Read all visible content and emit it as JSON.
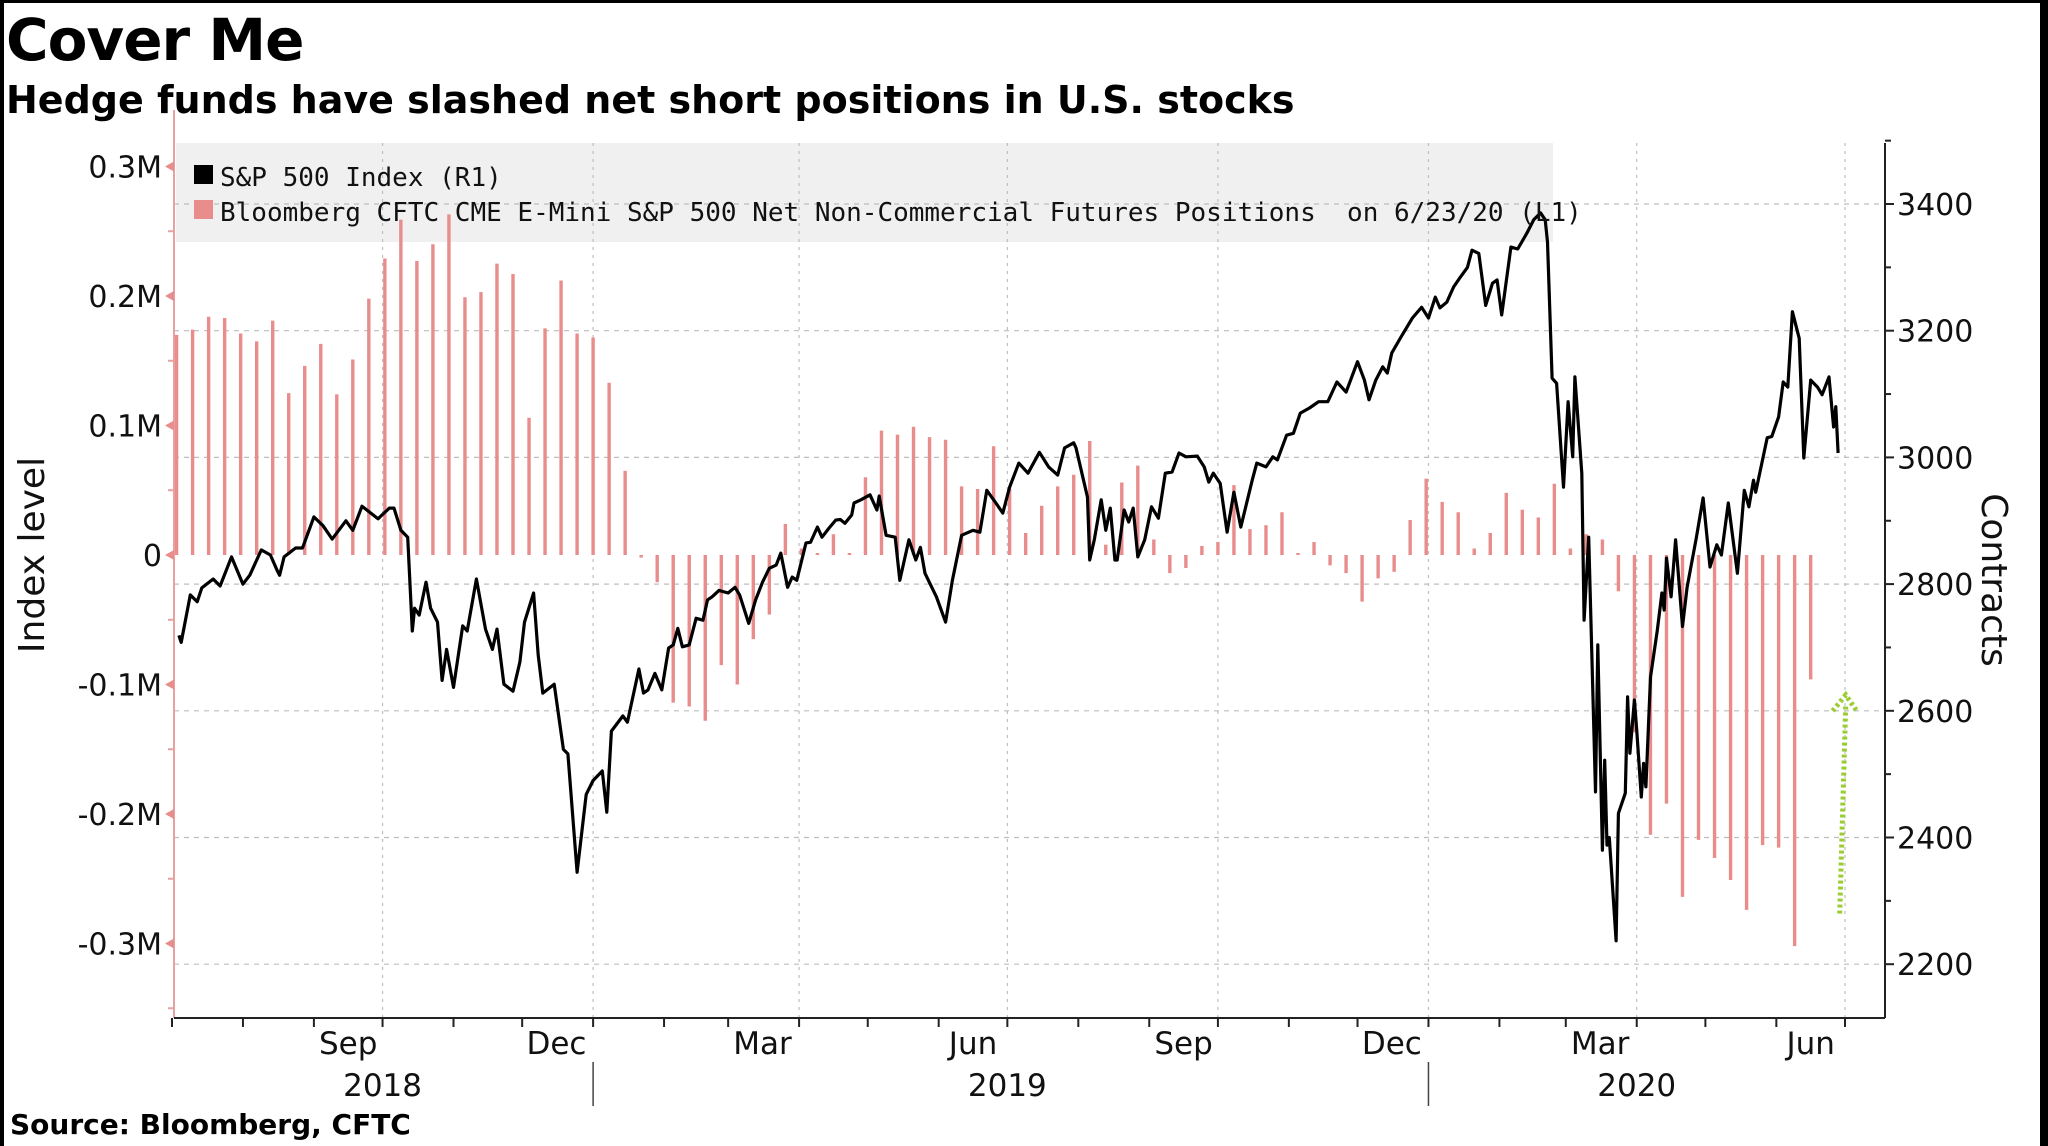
{
  "title": "Cover Me",
  "subtitle": "Hedge funds have slashed net short positions in U.S. stocks",
  "source": "Source: Bloomberg, CFTC",
  "colors": {
    "line": "#000000",
    "bars": "#e88c8c",
    "left_axis": "#e8a0a0",
    "legend_bg": "#f0f0f0",
    "annotation_arrow": "#9acd32",
    "grid": "#bdbdbd"
  },
  "chart_data": {
    "type": "bar+line",
    "title": "Cover Me",
    "subtitle": "Hedge funds have slashed net short positions in U.S. stocks",
    "x_axis": {
      "start_date": "2018-07-01",
      "end_date": "2020-07-10",
      "month_labels": [
        {
          "label": "Sep",
          "day": 77
        },
        {
          "label": "Dec",
          "day": 168
        },
        {
          "label": "Mar",
          "day": 258
        },
        {
          "label": "Jun",
          "day": 350
        },
        {
          "label": "Sep",
          "day": 442
        },
        {
          "label": "Dec",
          "day": 533
        },
        {
          "label": "Mar",
          "day": 624
        },
        {
          "label": "Jun",
          "day": 716
        }
      ],
      "quarter_gridlines_day": [
        92,
        184,
        274,
        365,
        457,
        549,
        640,
        731
      ],
      "year_labels": [
        {
          "label": "2018",
          "day": 92
        },
        {
          "label": "2019",
          "day": 365
        },
        {
          "label": "2020",
          "day": 640
        }
      ],
      "year_separators_day": [
        184,
        549
      ]
    },
    "left_axis": {
      "label": "Index level",
      "ylim": [
        -0.365,
        0.33
      ],
      "ticks": [
        0.3,
        0.2,
        0.1,
        0,
        -0.1,
        -0.2,
        -0.3
      ],
      "tick_labels": [
        "0.3M",
        "0.2M",
        "0.1M",
        "0",
        "-0.1M",
        "-0.2M",
        "-0.3M"
      ],
      "unit": "millions of contracts"
    },
    "right_axis": {
      "label": "Contracts",
      "ylim": [
        2118,
        3505
      ],
      "ticks": [
        3400,
        3200,
        3000,
        2800,
        2600,
        2400,
        2200
      ],
      "tick_labels": [
        "3400",
        "3200",
        "3000",
        "2800",
        "2600",
        "2400",
        "2200"
      ]
    },
    "legend": {
      "placement": "top-left",
      "items": [
        {
          "label": "S&P 500 Index (R1)",
          "swatch": "line"
        },
        {
          "label": "Bloomberg CFTC CME E-Mini S&P 500 Net Non-Commercial Futures Positions  on 6/23/20 (L1)",
          "swatch": "bars"
        }
      ]
    },
    "bar_series": {
      "name": "Bloomberg CFTC CME E-Mini S&P 500 Net Non-Commercial Futures Positions (L1)",
      "axis": "left",
      "first_day": 2,
      "step_days": 7,
      "values_millions": [
        0.17,
        0.174,
        0.184,
        0.183,
        0.171,
        0.165,
        0.181,
        0.125,
        0.146,
        0.163,
        0.124,
        0.151,
        0.198,
        0.229,
        0.259,
        0.227,
        0.24,
        0.263,
        0.199,
        0.203,
        0.225,
        0.217,
        0.106,
        0.175,
        0.212,
        0.171,
        0.168,
        0.133,
        0.065,
        -0.002,
        -0.021,
        -0.114,
        -0.117,
        -0.128,
        -0.085,
        -0.1,
        -0.065,
        -0.046,
        0.024,
        0.005,
        0.001,
        0.016,
        0.001,
        0.06,
        0.096,
        0.093,
        0.099,
        0.091,
        0.089,
        0.053,
        0.051,
        0.084,
        0.051,
        0.017,
        0.038,
        0.053,
        0.062,
        0.088,
        0.008,
        0.056,
        0.069,
        0.012,
        -0.014,
        -0.01,
        0.007,
        0.01,
        0.054,
        0.02,
        0.023,
        0.033,
        0.001,
        0.01,
        -0.008,
        -0.014,
        -0.036,
        -0.018,
        -0.013,
        0.027,
        0.059,
        0.041,
        0.033,
        0.005,
        0.017,
        0.048,
        0.035,
        0.029,
        0.055,
        0.005,
        0.016,
        0.012,
        -0.028,
        -0.137,
        -0.216,
        -0.192,
        -0.264,
        -0.22,
        -0.234,
        -0.251,
        -0.274,
        -0.224,
        -0.226,
        -0.302,
        -0.096
      ]
    },
    "line_series": {
      "name": "S&P 500 Index (R1)",
      "axis": "right",
      "points_day_value": [
        [
          3,
          2719
        ],
        [
          4,
          2708
        ],
        [
          8,
          2783
        ],
        [
          11,
          2772
        ],
        [
          13,
          2794
        ],
        [
          18,
          2808
        ],
        [
          21,
          2797
        ],
        [
          26,
          2843
        ],
        [
          31,
          2800
        ],
        [
          34,
          2814
        ],
        [
          39,
          2854
        ],
        [
          43,
          2846
        ],
        [
          46,
          2821
        ],
        [
          47,
          2814
        ],
        [
          49,
          2843
        ],
        [
          54,
          2857
        ],
        [
          57,
          2857
        ],
        [
          62,
          2906
        ],
        [
          66,
          2892
        ],
        [
          70,
          2871
        ],
        [
          76,
          2900
        ],
        [
          79,
          2885
        ],
        [
          83,
          2923
        ],
        [
          90,
          2903
        ],
        [
          95,
          2920
        ],
        [
          97,
          2920
        ],
        [
          100,
          2885
        ],
        [
          103,
          2874
        ],
        [
          105,
          2726
        ],
        [
          106,
          2762
        ],
        [
          108,
          2751
        ],
        [
          111,
          2803
        ],
        [
          113,
          2762
        ],
        [
          116,
          2740
        ],
        [
          118,
          2648
        ],
        [
          120,
          2697
        ],
        [
          123,
          2637
        ],
        [
          127,
          2734
        ],
        [
          129,
          2726
        ],
        [
          133,
          2808
        ],
        [
          137,
          2729
        ],
        [
          140,
          2697
        ],
        [
          142,
          2729
        ],
        [
          145,
          2642
        ],
        [
          149,
          2631
        ],
        [
          152,
          2677
        ],
        [
          154,
          2740
        ],
        [
          158,
          2786
        ],
        [
          160,
          2688
        ],
        [
          162,
          2628
        ],
        [
          167,
          2642
        ],
        [
          171,
          2539
        ],
        [
          173,
          2532
        ],
        [
          177,
          2345
        ],
        [
          181,
          2468
        ],
        [
          184,
          2490
        ],
        [
          188,
          2505
        ],
        [
          190,
          2440
        ],
        [
          192,
          2568
        ],
        [
          197,
          2592
        ],
        [
          199,
          2582
        ],
        [
          204,
          2666
        ],
        [
          206,
          2628
        ],
        [
          208,
          2633
        ],
        [
          211,
          2659
        ],
        [
          214,
          2633
        ],
        [
          217,
          2699
        ],
        [
          219,
          2704
        ],
        [
          221,
          2730
        ],
        [
          223,
          2701
        ],
        [
          226,
          2704
        ],
        [
          229,
          2746
        ],
        [
          232,
          2743
        ],
        [
          234,
          2775
        ],
        [
          236,
          2780
        ],
        [
          239,
          2790
        ],
        [
          243,
          2786
        ],
        [
          246,
          2795
        ],
        [
          248,
          2783
        ],
        [
          252,
          2738
        ],
        [
          255,
          2775
        ],
        [
          258,
          2803
        ],
        [
          261,
          2825
        ],
        [
          264,
          2830
        ],
        [
          266,
          2849
        ],
        [
          269,
          2795
        ],
        [
          271,
          2811
        ],
        [
          273,
          2806
        ],
        [
          277,
          2865
        ],
        [
          279,
          2866
        ],
        [
          282,
          2890
        ],
        [
          284,
          2874
        ],
        [
          287,
          2888
        ],
        [
          290,
          2901
        ],
        [
          292,
          2902
        ],
        [
          294,
          2896
        ],
        [
          297,
          2909
        ],
        [
          298,
          2928
        ],
        [
          301,
          2933
        ],
        [
          305,
          2941
        ],
        [
          308,
          2917
        ],
        [
          309,
          2939
        ],
        [
          312,
          2877
        ],
        [
          316,
          2874
        ],
        [
          318,
          2806
        ],
        [
          322,
          2870
        ],
        [
          325,
          2838
        ],
        [
          327,
          2858
        ],
        [
          329,
          2817
        ],
        [
          334,
          2780
        ],
        [
          338,
          2740
        ],
        [
          341,
          2806
        ],
        [
          345,
          2877
        ],
        [
          350,
          2885
        ],
        [
          353,
          2882
        ],
        [
          356,
          2948
        ],
        [
          360,
          2928
        ],
        [
          363,
          2912
        ],
        [
          366,
          2953
        ],
        [
          370,
          2991
        ],
        [
          374,
          2975
        ],
        [
          379,
          3008
        ],
        [
          383,
          2985
        ],
        [
          387,
          2972
        ],
        [
          390,
          3015
        ],
        [
          394,
          3023
        ],
        [
          395,
          3015
        ],
        [
          400,
          2937
        ],
        [
          401,
          2838
        ],
        [
          403,
          2870
        ],
        [
          406,
          2933
        ],
        [
          408,
          2885
        ],
        [
          410,
          2920
        ],
        [
          412,
          2838
        ],
        [
          413,
          2838
        ],
        [
          416,
          2917
        ],
        [
          418,
          2898
        ],
        [
          420,
          2920
        ],
        [
          422,
          2843
        ],
        [
          425,
          2870
        ],
        [
          428,
          2922
        ],
        [
          431,
          2904
        ],
        [
          434,
          2975
        ],
        [
          437,
          2977
        ],
        [
          440,
          3007
        ],
        [
          443,
          3001
        ],
        [
          448,
          3002
        ],
        [
          451,
          2985
        ],
        [
          453,
          2961
        ],
        [
          455,
          2975
        ],
        [
          458,
          2959
        ],
        [
          461,
          2882
        ],
        [
          464,
          2945
        ],
        [
          467,
          2890
        ],
        [
          472,
          2964
        ],
        [
          474,
          2991
        ],
        [
          478,
          2985
        ],
        [
          481,
          3001
        ],
        [
          483,
          2996
        ],
        [
          487,
          3035
        ],
        [
          490,
          3038
        ],
        [
          493,
          3070
        ],
        [
          497,
          3078
        ],
        [
          501,
          3088
        ],
        [
          505,
          3088
        ],
        [
          509,
          3119
        ],
        [
          513,
          3103
        ],
        [
          518,
          3151
        ],
        [
          521,
          3122
        ],
        [
          523,
          3091
        ],
        [
          526,
          3122
        ],
        [
          529,
          3143
        ],
        [
          531,
          3133
        ],
        [
          533,
          3165
        ],
        [
          537,
          3190
        ],
        [
          542,
          3220
        ],
        [
          546,
          3237
        ],
        [
          549,
          3220
        ],
        [
          552,
          3253
        ],
        [
          554,
          3236
        ],
        [
          557,
          3245
        ],
        [
          560,
          3269
        ],
        [
          563,
          3285
        ],
        [
          566,
          3300
        ],
        [
          568,
          3327
        ],
        [
          571,
          3322
        ],
        [
          574,
          3240
        ],
        [
          577,
          3275
        ],
        [
          579,
          3280
        ],
        [
          581,
          3225
        ],
        [
          585,
          3332
        ],
        [
          588,
          3329
        ],
        [
          592,
          3354
        ],
        [
          595,
          3375
        ],
        [
          598,
          3386
        ],
        [
          600,
          3375
        ],
        [
          601,
          3340
        ],
        [
          603,
          3125
        ],
        [
          605,
          3117
        ],
        [
          608,
          2953
        ],
        [
          610,
          3088
        ],
        [
          612,
          3001
        ],
        [
          613,
          3127
        ],
        [
          616,
          2975
        ],
        [
          617,
          2743
        ],
        [
          619,
          2874
        ],
        [
          622,
          2472
        ],
        [
          623,
          2704
        ],
        [
          625,
          2380
        ],
        [
          626,
          2522
        ],
        [
          627,
          2388
        ],
        [
          628,
          2400
        ],
        [
          631,
          2237
        ],
        [
          632,
          2438
        ],
        [
          635,
          2470
        ],
        [
          636,
          2622
        ],
        [
          637,
          2533
        ],
        [
          639,
          2617
        ],
        [
          640,
          2570
        ],
        [
          642,
          2464
        ],
        [
          643,
          2517
        ],
        [
          644,
          2480
        ],
        [
          646,
          2653
        ],
        [
          649,
          2727
        ],
        [
          651,
          2786
        ],
        [
          652,
          2759
        ],
        [
          653,
          2841
        ],
        [
          655,
          2780
        ],
        [
          657,
          2870
        ],
        [
          660,
          2733
        ],
        [
          662,
          2795
        ],
        [
          666,
          2872
        ],
        [
          669,
          2936
        ],
        [
          672,
          2827
        ],
        [
          675,
          2862
        ],
        [
          677,
          2846
        ],
        [
          680,
          2928
        ],
        [
          684,
          2817
        ],
        [
          687,
          2948
        ],
        [
          689,
          2922
        ],
        [
          691,
          2964
        ],
        [
          692,
          2945
        ],
        [
          697,
          3031
        ],
        [
          699,
          3033
        ],
        [
          702,
          3064
        ],
        [
          704,
          3119
        ],
        [
          706,
          3111
        ],
        [
          708,
          3230
        ],
        [
          711,
          3188
        ],
        [
          713,
          2999
        ],
        [
          716,
          3122
        ],
        [
          719,
          3111
        ],
        [
          721,
          3099
        ],
        [
          724,
          3127
        ],
        [
          726,
          3048
        ],
        [
          727,
          3080
        ],
        [
          728,
          3007
        ]
      ]
    },
    "annotation": {
      "type": "dotted-arrow-up",
      "from_right_value": 2280,
      "to_right_value": 2625,
      "day": 730
    },
    "grid": true
  }
}
